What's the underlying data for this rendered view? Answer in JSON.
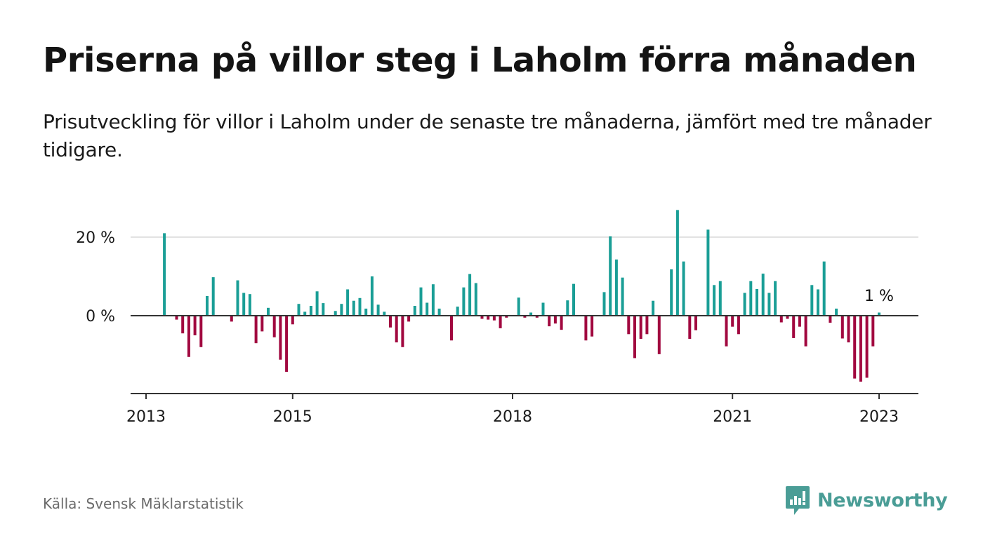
{
  "title": "Priserna på villor steg i Laholm förra månaden",
  "subtitle": "Prisutveckling för villor i Laholm under de senaste tre månaderna, jämfört med tre månader tidigare.",
  "source": "Källa: Svensk Mäklarstatistik",
  "brand": {
    "name": "Newsworthy",
    "color": "#4a9d96"
  },
  "colors": {
    "positive": "#1a9e96",
    "negative": "#a1083f",
    "grid": "#d9d9d9",
    "axis": "#333333"
  },
  "chart_data": {
    "type": "bar",
    "title": "Priserna på villor steg i Laholm förra månaden",
    "xlabel": "",
    "ylabel": "",
    "ylim": [
      -20,
      30
    ],
    "grid": true,
    "y_ticks": [
      {
        "value": 0,
        "label": "0 %"
      },
      {
        "value": 20,
        "label": "20 %"
      }
    ],
    "x_ticks": [
      {
        "value": "2013-01",
        "label": "2013"
      },
      {
        "value": "2015-01",
        "label": "2015"
      },
      {
        "value": "2018-01",
        "label": "2018"
      },
      {
        "value": "2021-01",
        "label": "2021"
      },
      {
        "value": "2023-01",
        "label": "2023"
      }
    ],
    "annotation": {
      "x": "2023-01",
      "label": "1 %"
    },
    "series": [
      {
        "points": [
          [
            "2013-04",
            21
          ],
          [
            "2013-05",
            0
          ],
          [
            "2013-06",
            -1
          ],
          [
            "2013-07",
            -4.5
          ],
          [
            "2013-08",
            -10.5
          ],
          [
            "2013-09",
            -5
          ],
          [
            "2013-10",
            -8
          ],
          [
            "2013-11",
            5
          ],
          [
            "2013-12",
            9.8
          ],
          [
            "2014-01",
            0
          ],
          [
            "2014-02",
            0
          ],
          [
            "2014-03",
            -1.5
          ],
          [
            "2014-04",
            9
          ],
          [
            "2014-05",
            5.8
          ],
          [
            "2014-06",
            5.5
          ],
          [
            "2014-07",
            -7
          ],
          [
            "2014-08",
            -4
          ],
          [
            "2014-09",
            2
          ],
          [
            "2014-10",
            -5.5
          ],
          [
            "2014-11",
            -11.2
          ],
          [
            "2014-12",
            -14.3
          ],
          [
            "2015-01",
            -2.2
          ],
          [
            "2015-02",
            3
          ],
          [
            "2015-03",
            1
          ],
          [
            "2015-04",
            2.5
          ],
          [
            "2015-05",
            6.2
          ],
          [
            "2015-06",
            3.2
          ],
          [
            "2015-07",
            0
          ],
          [
            "2015-08",
            1.2
          ],
          [
            "2015-09",
            3
          ],
          [
            "2015-10",
            6.7
          ],
          [
            "2015-11",
            3.8
          ],
          [
            "2015-12",
            4.5
          ],
          [
            "2016-01",
            1.8
          ],
          [
            "2016-02",
            10
          ],
          [
            "2016-03",
            2.8
          ],
          [
            "2016-04",
            1
          ],
          [
            "2016-05",
            -3
          ],
          [
            "2016-06",
            -6.8
          ],
          [
            "2016-07",
            -8
          ],
          [
            "2016-08",
            -1.5
          ],
          [
            "2016-09",
            2.5
          ],
          [
            "2016-10",
            7.2
          ],
          [
            "2016-11",
            3.3
          ],
          [
            "2016-12",
            8
          ],
          [
            "2017-01",
            1.8
          ],
          [
            "2017-02",
            0
          ],
          [
            "2017-03",
            -6.3
          ],
          [
            "2017-04",
            2.3
          ],
          [
            "2017-05",
            7.2
          ],
          [
            "2017-06",
            10.6
          ],
          [
            "2017-07",
            8.3
          ],
          [
            "2017-08",
            -0.8
          ],
          [
            "2017-09",
            -1
          ],
          [
            "2017-10",
            -1.2
          ],
          [
            "2017-11",
            -3.2
          ],
          [
            "2017-12",
            -0.5
          ],
          [
            "2018-01",
            0
          ],
          [
            "2018-02",
            4.6
          ],
          [
            "2018-03",
            -0.5
          ],
          [
            "2018-04",
            0.8
          ],
          [
            "2018-05",
            -0.5
          ],
          [
            "2018-06",
            3.3
          ],
          [
            "2018-07",
            -2.7
          ],
          [
            "2018-08",
            -2
          ],
          [
            "2018-09",
            -3.6
          ],
          [
            "2018-10",
            3.9
          ],
          [
            "2018-11",
            8.1
          ],
          [
            "2018-12",
            0
          ],
          [
            "2019-01",
            -6.3
          ],
          [
            "2019-02",
            -5.3
          ],
          [
            "2019-03",
            0
          ],
          [
            "2019-04",
            6
          ],
          [
            "2019-05",
            20.2
          ],
          [
            "2019-06",
            14.3
          ],
          [
            "2019-07",
            9.7
          ],
          [
            "2019-08",
            -4.7
          ],
          [
            "2019-09",
            -10.8
          ],
          [
            "2019-10",
            -5.9
          ],
          [
            "2019-11",
            -4.7
          ],
          [
            "2019-12",
            3.8
          ],
          [
            "2020-01",
            -9.8
          ],
          [
            "2020-02",
            0
          ],
          [
            "2020-03",
            11.8
          ],
          [
            "2020-04",
            26.9
          ],
          [
            "2020-05",
            13.8
          ],
          [
            "2020-06",
            -5.9
          ],
          [
            "2020-07",
            -3.7
          ],
          [
            "2020-08",
            0
          ],
          [
            "2020-09",
            21.9
          ],
          [
            "2020-10",
            7.8
          ],
          [
            "2020-11",
            8.8
          ],
          [
            "2020-12",
            -7.8
          ],
          [
            "2021-01",
            -2.8
          ],
          [
            "2021-02",
            -4.7
          ],
          [
            "2021-03",
            5.8
          ],
          [
            "2021-04",
            8.8
          ],
          [
            "2021-05",
            6.8
          ],
          [
            "2021-06",
            10.7
          ],
          [
            "2021-07",
            5.8
          ],
          [
            "2021-08",
            8.8
          ],
          [
            "2021-09",
            -1.7
          ],
          [
            "2021-10",
            -0.8
          ],
          [
            "2021-11",
            -5.7
          ],
          [
            "2021-12",
            -2.8
          ],
          [
            "2022-01",
            -7.8
          ],
          [
            "2022-02",
            7.8
          ],
          [
            "2022-03",
            6.7
          ],
          [
            "2022-04",
            13.8
          ],
          [
            "2022-05",
            -1.8
          ],
          [
            "2022-06",
            1.8
          ],
          [
            "2022-07",
            -5.8
          ],
          [
            "2022-08",
            -6.8
          ],
          [
            "2022-09",
            -16
          ],
          [
            "2022-10",
            -16.8
          ],
          [
            "2022-11",
            -15.8
          ],
          [
            "2022-12",
            -7.8
          ],
          [
            "2023-01",
            0.8
          ]
        ]
      }
    ]
  }
}
